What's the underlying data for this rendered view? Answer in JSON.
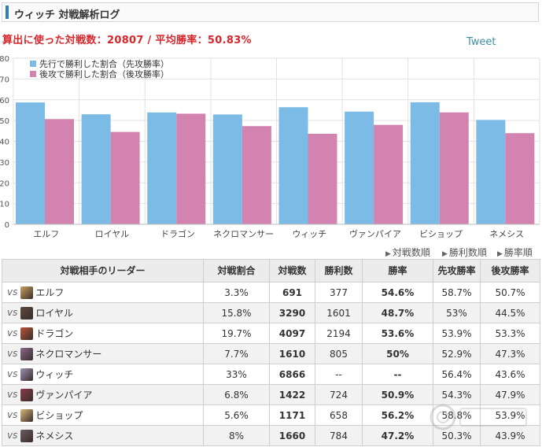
{
  "header": {
    "title": "ウィッチ 対戦解析ログ"
  },
  "summary": "算出に使った対戦数：20807 / 平均勝率：50.83%",
  "tweet_label": "Tweet",
  "colors": {
    "first": "#7bbbe6",
    "second": "#d383b0",
    "highlight": "#e77817",
    "accent": "#2d7fb8"
  },
  "chart_data": {
    "type": "bar",
    "categories": [
      "エルフ",
      "ロイヤル",
      "ドラゴン",
      "ネクロマンサー",
      "ウィッチ",
      "ヴァンパイア",
      "ビショップ",
      "ネメシス"
    ],
    "series": [
      {
        "name": "先行で勝利した割合（先攻勝率）",
        "values": [
          58.7,
          53,
          53.9,
          52.9,
          56.4,
          54.3,
          58.8,
          50.3
        ]
      },
      {
        "name": "後攻で勝利した割合（後攻勝率）",
        "values": [
          50.7,
          44.5,
          53.3,
          47.3,
          43.6,
          47.9,
          53.9,
          43.9
        ]
      }
    ],
    "ylim": [
      0,
      80
    ],
    "yticks": [
      0,
      10,
      20,
      30,
      40,
      50,
      60,
      70,
      80
    ],
    "grid": true,
    "legend": "top-left"
  },
  "sort_links": [
    "対戦数順",
    "勝利数順",
    "勝率順"
  ],
  "table": {
    "headers": [
      "対戦相手のリーダー",
      "対戦割合",
      "対戦数",
      "勝利数",
      "勝率",
      "先攻勝率",
      "後攻勝率"
    ],
    "vs_label": "vs",
    "rows": [
      {
        "leader": "エルフ",
        "share": "3.3%",
        "matches": "691",
        "wins": "377",
        "winrate": "54.6%",
        "first": "58.7%",
        "second": "50.7%",
        "avatar": "#c9a062",
        "hi": true
      },
      {
        "leader": "ロイヤル",
        "share": "15.8%",
        "matches": "3290",
        "wins": "1601",
        "winrate": "48.7%",
        "first": "53%",
        "second": "44.5%",
        "avatar": "#5a4a3e",
        "hi": false
      },
      {
        "leader": "ドラゴン",
        "share": "19.7%",
        "matches": "4097",
        "wins": "2194",
        "winrate": "53.6%",
        "first": "53.9%",
        "second": "53.3%",
        "avatar": "#b8543a",
        "hi": true
      },
      {
        "leader": "ネクロマンサー",
        "share": "7.7%",
        "matches": "1610",
        "wins": "805",
        "winrate": "50%",
        "first": "52.9%",
        "second": "47.3%",
        "avatar": "#8a6a8e",
        "hi": true
      },
      {
        "leader": "ウィッチ",
        "share": "33%",
        "matches": "6866",
        "wins": "--",
        "winrate": "--",
        "first": "56.4%",
        "second": "43.6%",
        "avatar": "#9d8fb6",
        "hi": false
      },
      {
        "leader": "ヴァンパイア",
        "share": "6.8%",
        "matches": "1422",
        "wins": "724",
        "winrate": "50.9%",
        "first": "54.3%",
        "second": "47.9%",
        "avatar": "#8a3b4a",
        "hi": true
      },
      {
        "leader": "ビショップ",
        "share": "5.6%",
        "matches": "1171",
        "wins": "658",
        "winrate": "56.2%",
        "first": "58.8%",
        "second": "53.9%",
        "avatar": "#d9b87a",
        "hi": true
      },
      {
        "leader": "ネメシス",
        "share": "8%",
        "matches": "1660",
        "wins": "784",
        "winrate": "47.2%",
        "first": "50.3%",
        "second": "43.9%",
        "avatar": "#6b5a60",
        "hi": false
      }
    ]
  }
}
